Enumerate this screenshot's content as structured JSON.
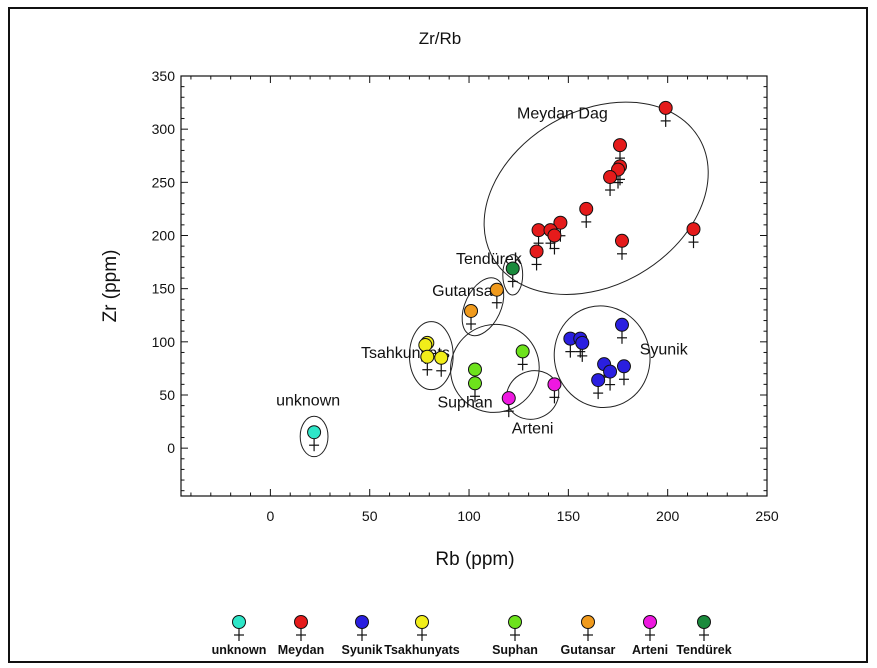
{
  "chart_data": {
    "type": "scatter",
    "title": "Zr/Rb",
    "xlabel": "Rb (ppm)",
    "ylabel": "Zr (ppm)",
    "xlim": [
      -45,
      250
    ],
    "ylim": [
      -45,
      350
    ],
    "xticks": [
      0,
      50,
      100,
      150,
      200,
      250
    ],
    "yticks": [
      0,
      50,
      100,
      150,
      200,
      250,
      300,
      350
    ],
    "grid": false,
    "legend_position": "bottom",
    "series": [
      {
        "name": "unknown",
        "color": "#2ee6c8",
        "points": [
          [
            22,
            15
          ]
        ]
      },
      {
        "name": "Meydan",
        "color": "#e51b1b",
        "points": [
          [
            199,
            320
          ],
          [
            176,
            285
          ],
          [
            176,
            265
          ],
          [
            175,
            262
          ],
          [
            171,
            255
          ],
          [
            159,
            225
          ],
          [
            146,
            212
          ],
          [
            135,
            205
          ],
          [
            141,
            205
          ],
          [
            143,
            200
          ],
          [
            177,
            195
          ],
          [
            213,
            206
          ],
          [
            134,
            185
          ]
        ]
      },
      {
        "name": "Syunik",
        "color": "#2a1fe0",
        "points": [
          [
            151,
            103
          ],
          [
            156,
            103
          ],
          [
            157,
            99
          ],
          [
            177,
            116
          ],
          [
            168,
            79
          ],
          [
            171,
            72
          ],
          [
            178,
            77
          ],
          [
            165,
            64
          ]
        ]
      },
      {
        "name": "Tsakhunyats",
        "color": "#f2ee1a",
        "points": [
          [
            79,
            99
          ],
          [
            78,
            97
          ],
          [
            79,
            86
          ],
          [
            86,
            85
          ]
        ]
      },
      {
        "name": "Suphan",
        "color": "#6de21c",
        "points": [
          [
            103,
            74
          ],
          [
            103,
            61
          ],
          [
            127,
            91
          ]
        ]
      },
      {
        "name": "Gutansar",
        "color": "#f09a1c",
        "points": [
          [
            101,
            129
          ],
          [
            114,
            149
          ]
        ]
      },
      {
        "name": "Arteni",
        "color": "#ee18e0",
        "points": [
          [
            120,
            47
          ],
          [
            143,
            60
          ]
        ]
      },
      {
        "name": "Tendürek",
        "color": "#1a8a3c",
        "points": [
          [
            122,
            169
          ]
        ]
      }
    ],
    "legend": [
      "unknown",
      "Meydan",
      "Syunik",
      "Tsakhunyats",
      "Suphan",
      "Gutansar",
      "Arteni",
      "Tendürek"
    ],
    "annotations": [
      {
        "text": "Meydan Dag",
        "x": 147,
        "y": 310
      },
      {
        "text": "Tendürek",
        "x": 110,
        "y": 173
      },
      {
        "text": "Gutansar",
        "x": 98,
        "y": 143
      },
      {
        "text": "Tsahkunyats",
        "x": 68,
        "y": 85
      },
      {
        "text": "unknown",
        "x": 19,
        "y": 40
      },
      {
        "text": "Suphan",
        "x": 98,
        "y": 38
      },
      {
        "text": "Arteni",
        "x": 132,
        "y": 14
      },
      {
        "text": "Syunik",
        "x": 198,
        "y": 88
      }
    ],
    "ellipses": [
      {
        "group": "Meydan Dag",
        "cx": 164,
        "cy": 235,
        "rx": 60,
        "ry": 82,
        "rotate": -30
      },
      {
        "group": "Tendürek",
        "cx": 122,
        "cy": 163,
        "rx": 5,
        "ry": 19,
        "rotate": 0
      },
      {
        "group": "Gutansar",
        "cx": 107,
        "cy": 133,
        "rx": 9,
        "ry": 29,
        "rotate": 25
      },
      {
        "group": "Tsahkunyats",
        "cx": 81,
        "cy": 87,
        "rx": 11,
        "ry": 32,
        "rotate": 0
      },
      {
        "group": "unknown",
        "cx": 22,
        "cy": 11,
        "rx": 7,
        "ry": 19,
        "rotate": 0
      },
      {
        "group": "Suphan",
        "cx": 113,
        "cy": 75,
        "rx": 22,
        "ry": 42,
        "rotate": 55
      },
      {
        "group": "Arteni",
        "cx": 132,
        "cy": 50,
        "rx": 12,
        "ry": 25,
        "rotate": 65
      },
      {
        "group": "Syunik",
        "cx": 167,
        "cy": 86,
        "rx": 24,
        "ry": 48,
        "rotate": -15
      }
    ]
  }
}
